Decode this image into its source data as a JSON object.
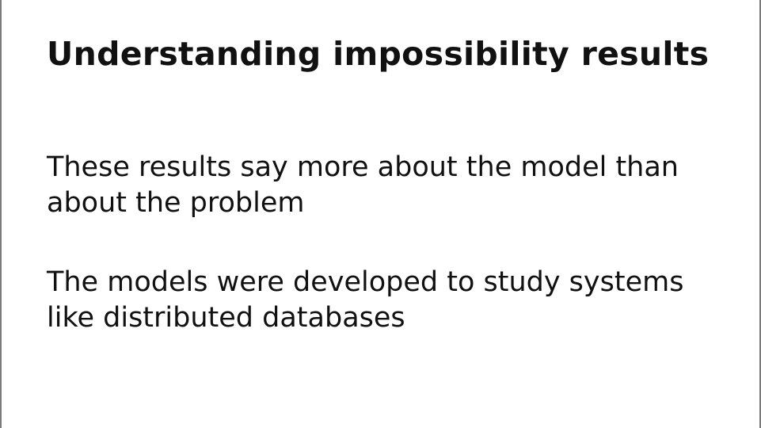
{
  "slide": {
    "title": "Understanding impossibility results",
    "paragraphs": [
      {
        "lines": [
          "These results say more about the model than",
          "about the problem"
        ]
      },
      {
        "lines": [
          "The models were developed to study systems",
          "like distributed databases"
        ]
      }
    ]
  }
}
